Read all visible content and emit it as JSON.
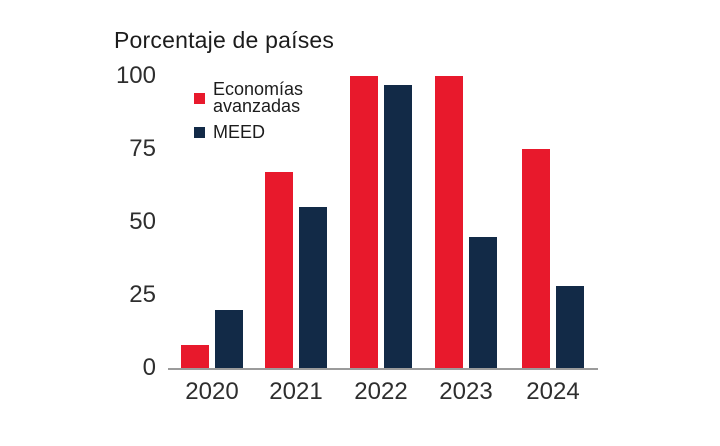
{
  "chart_data": {
    "type": "bar",
    "title": "Porcentaje de países",
    "categories": [
      "2020",
      "2021",
      "2022",
      "2023",
      "2024"
    ],
    "series": [
      {
        "name": "Economías avanzadas",
        "color": "#e8192c",
        "values": [
          8,
          67,
          100,
          100,
          75
        ]
      },
      {
        "name": "MEED",
        "color": "#122a47",
        "values": [
          20,
          55,
          97,
          45,
          28
        ]
      }
    ],
    "xlabel": "",
    "ylabel": "",
    "ylim": [
      0,
      100
    ],
    "yticks": [
      0,
      25,
      50,
      75,
      100
    ],
    "grid": false,
    "legend_position": "top-left",
    "axis_line_color": "#9b9b9b",
    "text_color": "#2e2e2e"
  }
}
